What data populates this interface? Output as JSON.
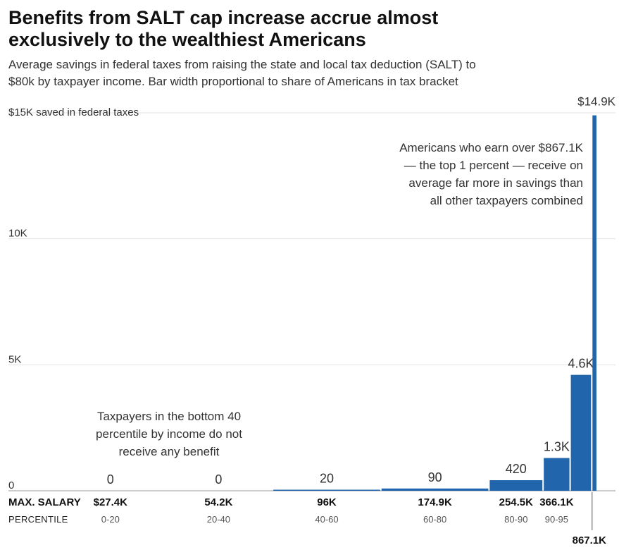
{
  "header": {
    "title_line1": "Benefits from SALT cap increase accrue almost",
    "title_line2": "exclusively to the wealthiest Americans",
    "subtitle_line1": "Average savings in federal taxes from raising the state and local tax deduction (SALT) to",
    "subtitle_line2": "$80k by taxpayer income. Bar width proportional to share of Americans in tax bracket"
  },
  "chart_data": {
    "type": "bar",
    "title": "Benefits from SALT cap increase accrue almost exclusively to the wealthiest Americans",
    "ylim": [
      0,
      15000
    ],
    "y_ticks": [
      {
        "value": 15000,
        "label": "$15K saved in federal taxes"
      },
      {
        "value": 10000,
        "label": "10K"
      },
      {
        "value": 5000,
        "label": "5K"
      },
      {
        "value": 0,
        "label": "0"
      }
    ],
    "grid": true,
    "row_headers": {
      "salary": "MAX. SALARY",
      "percentile": "PERCENTILE"
    },
    "brackets": [
      {
        "percentile": "0-20",
        "pct_from": 0,
        "pct_to": 20,
        "max_salary": "$27.4K",
        "value": 0,
        "value_label": "0"
      },
      {
        "percentile": "20-40",
        "pct_from": 20,
        "pct_to": 40,
        "max_salary": "54.2K",
        "value": 0,
        "value_label": "0"
      },
      {
        "percentile": "40-60",
        "pct_from": 40,
        "pct_to": 60,
        "max_salary": "96K",
        "value": 20,
        "value_label": "20"
      },
      {
        "percentile": "60-80",
        "pct_from": 60,
        "pct_to": 80,
        "max_salary": "174.9K",
        "value": 90,
        "value_label": "90"
      },
      {
        "percentile": "80-90",
        "pct_from": 80,
        "pct_to": 90,
        "max_salary": "254.5K",
        "value": 420,
        "value_label": "420"
      },
      {
        "percentile": "90-95",
        "pct_from": 90,
        "pct_to": 95,
        "max_salary": "366.1K",
        "value": 1300,
        "value_label": "1.3K"
      },
      {
        "percentile": "",
        "pct_from": 95,
        "pct_to": 99,
        "max_salary": "",
        "value": 4600,
        "value_label": "4.6K"
      },
      {
        "percentile": "",
        "pct_from": 99,
        "pct_to": 100,
        "max_salary": "",
        "value": 14900,
        "value_label": "$14.9K"
      }
    ],
    "extra_salary_label": "867.1K",
    "bar_color": "#2166ac",
    "annotations": {
      "top": [
        "Americans who earn over $867.1K",
        "— the top 1 percent — receive on",
        "average far more in savings than",
        "all other taxpayers combined"
      ],
      "bottom": [
        "Taxpayers in the bottom 40",
        "percentile by income do not",
        "receive any benefit"
      ]
    }
  }
}
